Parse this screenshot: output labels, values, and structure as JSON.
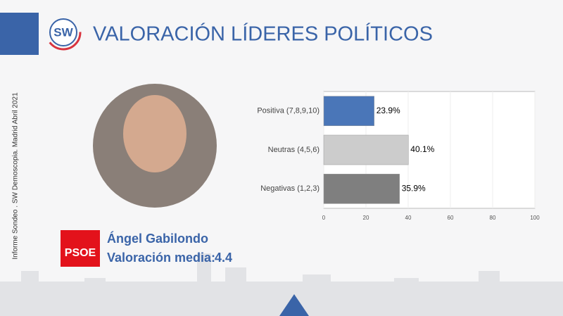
{
  "slide": {
    "logo": "SW",
    "side_note": "Informe Sondeo . SW  Demoscopia. Madrid Abril 2021",
    "party": "PSOE",
    "leader": "Ángel Gabilondo",
    "score_label": "Valoración media:",
    "score": 4.4
  },
  "chart_data": {
    "type": "bar",
    "orientation": "horizontal",
    "title": "VALORACIÓN LÍDERES POLÍTICOS",
    "categories": [
      "Positiva (7,8,9,10)",
      "Neutras (4,5,6)",
      "Negativas (1,2,3)"
    ],
    "values": [
      23.9,
      40.1,
      35.9
    ],
    "value_labels": [
      "23.9%",
      "40.1%",
      "35.9%"
    ],
    "colors": [
      "#4a76b8",
      "#cccccc",
      "#7f7f7f"
    ],
    "xlim": [
      0,
      100
    ],
    "xticks": [
      0,
      20,
      40,
      60,
      80,
      100
    ],
    "grid": true
  }
}
